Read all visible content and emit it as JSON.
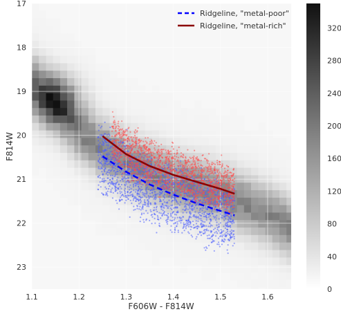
{
  "chart_data": {
    "type": "scatter",
    "title": "",
    "xlabel": "F606W - F814W",
    "ylabel": "F814W",
    "xlim": [
      1.1,
      1.65
    ],
    "ylim": [
      23.5,
      17.0
    ],
    "y_inverted": true,
    "grid": true,
    "legend_position": "top-right",
    "xticks": [
      "1.1",
      "1.2",
      "1.3",
      "1.4",
      "1.5",
      "1.6"
    ],
    "yticks": [
      "17",
      "18",
      "19",
      "20",
      "21",
      "22",
      "23"
    ],
    "background_density": {
      "type": "heatmap",
      "colormap": "Greys",
      "colorbar_range": [
        0,
        350
      ],
      "colorbar_ticks": [
        "0",
        "40",
        "80",
        "120",
        "160",
        "200",
        "240",
        "280",
        "320"
      ],
      "ridge_x": [
        1.1,
        1.15,
        1.2,
        1.25,
        1.3,
        1.35,
        1.4,
        1.45,
        1.5,
        1.55,
        1.6,
        1.65
      ],
      "ridge_y": [
        18.8,
        19.3,
        19.9,
        20.3,
        20.6,
        20.85,
        21.05,
        21.2,
        21.35,
        21.55,
        21.8,
        22.1
      ],
      "peak_x": 1.15,
      "peak_y": 19.2,
      "peak_value": 330
    },
    "series": [
      {
        "name": "Ridgeline, \"metal-poor\"",
        "type": "line",
        "color": "#0000ff",
        "style": "dashed",
        "x": [
          1.25,
          1.3,
          1.35,
          1.4,
          1.45,
          1.5,
          1.53
        ],
        "y": [
          20.48,
          20.83,
          21.12,
          21.35,
          21.55,
          21.72,
          21.82
        ]
      },
      {
        "name": "Ridgeline, \"metal-rich\"",
        "type": "line",
        "color": "#8b0000",
        "style": "solid",
        "x": [
          1.25,
          1.3,
          1.35,
          1.4,
          1.45,
          1.5,
          1.53
        ],
        "y": [
          20.02,
          20.43,
          20.7,
          20.9,
          21.06,
          21.22,
          21.33
        ]
      }
    ],
    "scatter_groups": [
      {
        "color": "#4b5cff",
        "n_points": 1800,
        "x_range": [
          1.24,
          1.53
        ],
        "ridge_offset_mag": 0.25,
        "spread_mag": 0.75
      },
      {
        "color": "#ff4b4b",
        "n_points": 1500,
        "x_range": [
          1.27,
          1.53
        ],
        "ridge_offset_mag": -0.2,
        "spread_mag": 0.55
      }
    ]
  }
}
